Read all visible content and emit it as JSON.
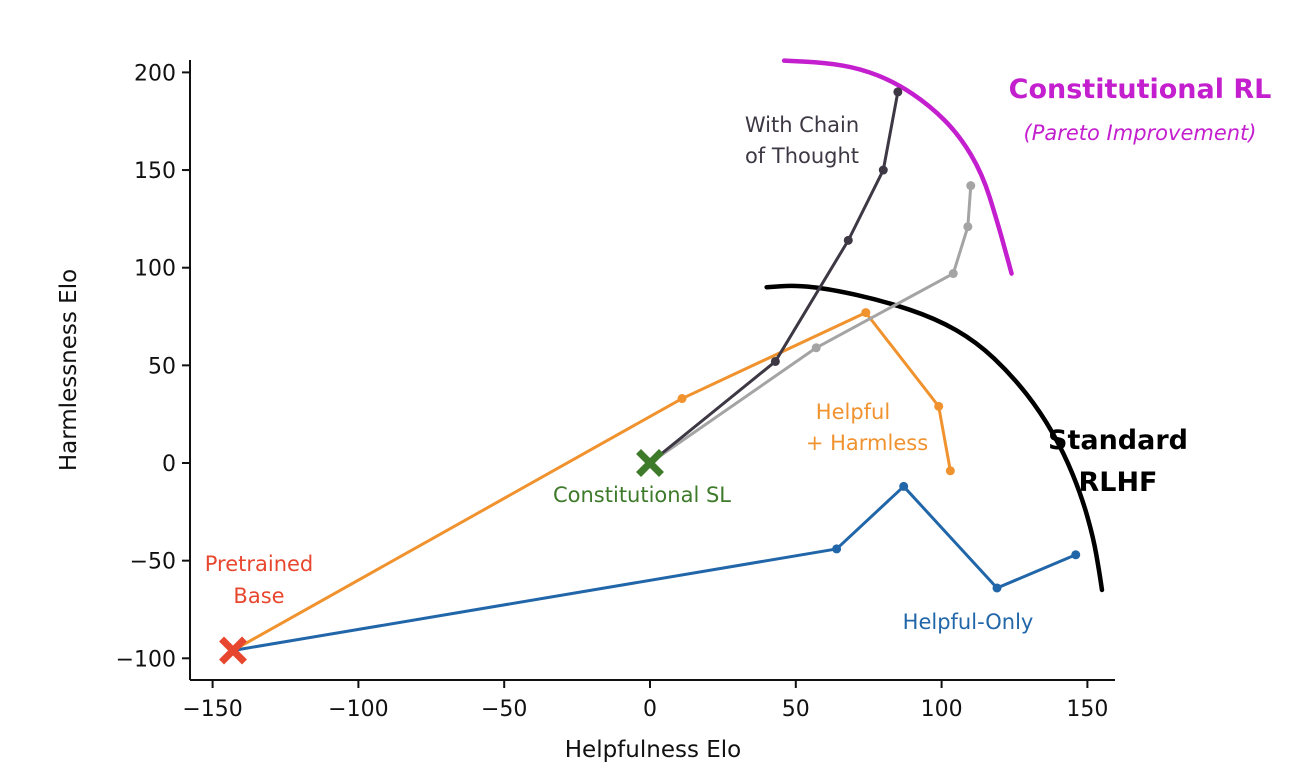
{
  "chart_data": {
    "type": "line",
    "title": "",
    "xlabel": "Helpfulness Elo",
    "ylabel": "Harmlessness Elo",
    "xlim": [
      -152,
      160
    ],
    "ylim": [
      -110,
      205
    ],
    "xticks": [
      -150,
      -100,
      -50,
      0,
      50,
      100,
      150
    ],
    "yticks": [
      -100,
      -50,
      0,
      50,
      100,
      150,
      200
    ],
    "xtick_labels": [
      "−150",
      "−100",
      "−50",
      "0",
      "50",
      "100",
      "150"
    ],
    "ytick_labels": [
      "−100",
      "−50",
      "0",
      "50",
      "100",
      "150",
      "200"
    ],
    "series": [
      {
        "name": "Helpful-Only",
        "color": "#2166a9",
        "points": [
          [
            -143,
            -96
          ],
          [
            64,
            -44
          ],
          [
            87,
            -12
          ],
          [
            119,
            -64
          ],
          [
            146,
            -47
          ]
        ]
      },
      {
        "name": "Helpful + Harmless",
        "color": "#f0922e",
        "points": [
          [
            -143,
            -96
          ],
          [
            11,
            33
          ],
          [
            74,
            77
          ],
          [
            99,
            29
          ],
          [
            103,
            -4
          ]
        ]
      },
      {
        "name": "Constitutional RL (Pareto Improvement)",
        "color": "#a4a4a4",
        "points": [
          [
            0,
            0
          ],
          [
            57,
            59
          ],
          [
            104,
            97
          ],
          [
            109,
            121
          ],
          [
            110,
            142
          ]
        ]
      },
      {
        "name": "With Chain of Thought",
        "color": "#3d3844",
        "points": [
          [
            0,
            0
          ],
          [
            43,
            52
          ],
          [
            68,
            114
          ],
          [
            80,
            150
          ],
          [
            85,
            190
          ]
        ]
      }
    ],
    "markers": [
      {
        "name": "Pretrained Base",
        "x": -143,
        "y": -96,
        "color": "#e8472f"
      },
      {
        "name": "Constitutional SL",
        "x": 0,
        "y": 0,
        "color": "#3d7a2a"
      }
    ],
    "frontiers": [
      {
        "name": "Standard RLHF",
        "color": "#000000",
        "points": [
          [
            40,
            90
          ],
          [
            50,
            91
          ],
          [
            62,
            89
          ],
          [
            80,
            83
          ],
          [
            98,
            74
          ],
          [
            112,
            62
          ],
          [
            124,
            45
          ],
          [
            134,
            26
          ],
          [
            142,
            5
          ],
          [
            148,
            -17
          ],
          [
            152,
            -38
          ],
          [
            154,
            -55
          ],
          [
            155,
            -65
          ]
        ]
      },
      {
        "name": "Constitutional RL",
        "color": "#c41fce",
        "points": [
          [
            46,
            206
          ],
          [
            60,
            205
          ],
          [
            72,
            202
          ],
          [
            84,
            195
          ],
          [
            96,
            183
          ],
          [
            106,
            168
          ],
          [
            114,
            148
          ],
          [
            119,
            124
          ],
          [
            122,
            108
          ],
          [
            124,
            97
          ]
        ]
      }
    ],
    "annotations": {
      "pretrained_line1": "Pretrained",
      "pretrained_line2": "Base",
      "constitutional_sl": "Constitutional SL",
      "cot_line1": "With Chain",
      "cot_line2": "of Thought",
      "hh_line1": "Helpful",
      "hh_line2": "+ Harmless",
      "helpful_only": "Helpful-Only",
      "standard_line1": "Standard",
      "standard_line2": "RLHF",
      "crl_title": "Constitutional RL",
      "crl_subtitle": "(Pareto Improvement)"
    }
  }
}
